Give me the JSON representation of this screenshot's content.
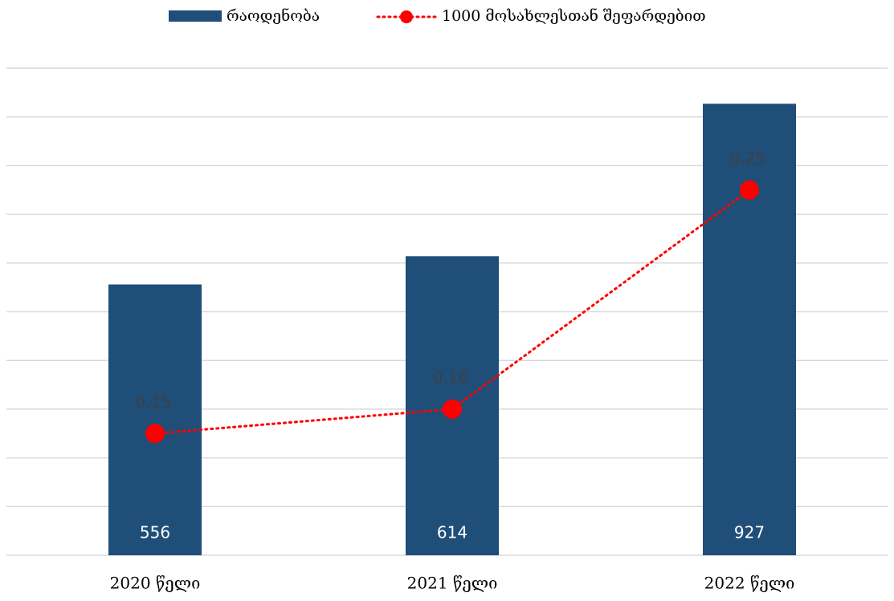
{
  "chart_data": {
    "type": "bar_line",
    "categories": [
      "2020 წელი",
      "2021 წელი",
      "2022 წელი"
    ],
    "series": [
      {
        "name": "რაოდენობა",
        "type": "bar",
        "color": "#1f4e79",
        "values": [
          556,
          614,
          927
        ]
      },
      {
        "name": "1000 მოსახლესთან შეფარდებით",
        "type": "line",
        "axis": "y2",
        "color": "#ff0000",
        "values": [
          0.15,
          0.16,
          0.25
        ]
      }
    ],
    "ylim": [
      0,
      1000
    ],
    "yticks": [
      0,
      100,
      200,
      300,
      400,
      500,
      600,
      700,
      800,
      900,
      1000
    ],
    "y2lim": [
      0.1,
      0.3
    ],
    "grid": true,
    "legend": "top"
  }
}
